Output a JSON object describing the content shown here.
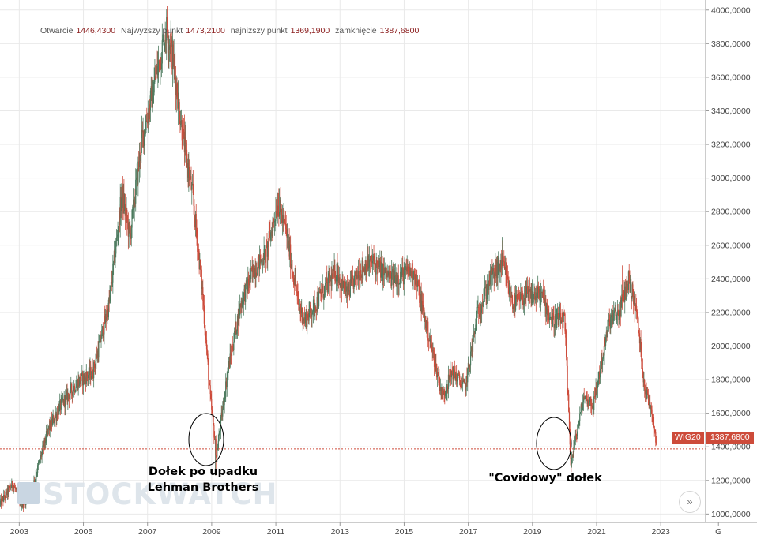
{
  "ohlc": {
    "open_label": "Otwarcie",
    "open": "1446,4300",
    "high_label": "Najwyzszy punkt",
    "high": "1473,2100",
    "low_label": "najnizszy punkt",
    "low": "1369,1900",
    "close_label": "zamknięcie",
    "close": "1387,6800"
  },
  "watermark": "STOCKWATCH",
  "annotations": {
    "lehman": [
      "Dołek po upadku",
      "Lehman Brothers"
    ],
    "covid": "\"Covidowy\" dołek"
  },
  "last_tag": {
    "symbol": "WIG20",
    "value": "1387,6800"
  },
  "colors": {
    "up": "#4c7a5e",
    "down": "#cd4b3a",
    "grid": "#e9e9e9",
    "axis_text": "#444444"
  },
  "nav_icon": "double-chevron-right-icon",
  "chart_data": {
    "type": "candlestick",
    "series_name": "WIG20",
    "y_axis": {
      "position": "right",
      "min": 950,
      "max": 4060,
      "ticks": [
        {
          "v": 1000,
          "label": "1000,0000"
        },
        {
          "v": 1200,
          "label": "1200,0000"
        },
        {
          "v": 1400,
          "label": "1400,0000"
        },
        {
          "v": 1600,
          "label": "1600,0000"
        },
        {
          "v": 1800,
          "label": "1800,0000"
        },
        {
          "v": 2000,
          "label": "2000,0000"
        },
        {
          "v": 2200,
          "label": "2200,0000"
        },
        {
          "v": 2400,
          "label": "2400,0000"
        },
        {
          "v": 2600,
          "label": "2600,0000"
        },
        {
          "v": 2800,
          "label": "2800,0000"
        },
        {
          "v": 3000,
          "label": "3000,0000"
        },
        {
          "v": 3200,
          "label": "3200,0000"
        },
        {
          "v": 3400,
          "label": "3400,0000"
        },
        {
          "v": 3600,
          "label": "3600,0000"
        },
        {
          "v": 3800,
          "label": "3800,0000"
        },
        {
          "v": 4000,
          "label": "4000,0000"
        }
      ]
    },
    "x_axis": {
      "min": 2002.4,
      "max": 2024.4,
      "ticks": [
        {
          "v": 2003,
          "label": "2003"
        },
        {
          "v": 2005,
          "label": "2005"
        },
        {
          "v": 2007,
          "label": "2007"
        },
        {
          "v": 2009,
          "label": "2009"
        },
        {
          "v": 2011,
          "label": "2011"
        },
        {
          "v": 2013,
          "label": "2013"
        },
        {
          "v": 2015,
          "label": "2015"
        },
        {
          "v": 2017,
          "label": "2017"
        },
        {
          "v": 2019,
          "label": "2019"
        },
        {
          "v": 2021,
          "label": "2021"
        },
        {
          "v": 2023,
          "label": "2023"
        },
        {
          "v": 2024.8,
          "label": "G"
        }
      ]
    },
    "last_value": 1387.68,
    "trend": [
      [
        2002.4,
        1060
      ],
      [
        2002.8,
        1180
      ],
      [
        2003.1,
        1050
      ],
      [
        2003.4,
        1150
      ],
      [
        2003.9,
        1500
      ],
      [
        2004.3,
        1650
      ],
      [
        2004.8,
        1780
      ],
      [
        2005.3,
        1850
      ],
      [
        2005.8,
        2250
      ],
      [
        2006.2,
        2900
      ],
      [
        2006.45,
        2650
      ],
      [
        2006.8,
        3200
      ],
      [
        2007.2,
        3550
      ],
      [
        2007.6,
        3900
      ],
      [
        2007.8,
        3700
      ],
      [
        2008.1,
        3250
      ],
      [
        2008.4,
        2900
      ],
      [
        2008.7,
        2350
      ],
      [
        2008.95,
        1700
      ],
      [
        2009.15,
        1350
      ],
      [
        2009.5,
        1850
      ],
      [
        2009.9,
        2250
      ],
      [
        2010.3,
        2450
      ],
      [
        2010.7,
        2550
      ],
      [
        2011.05,
        2850
      ],
      [
        2011.3,
        2700
      ],
      [
        2011.7,
        2250
      ],
      [
        2011.9,
        2150
      ],
      [
        2012.4,
        2300
      ],
      [
        2012.9,
        2450
      ],
      [
        2013.2,
        2300
      ],
      [
        2013.6,
        2450
      ],
      [
        2014.0,
        2500
      ],
      [
        2014.6,
        2400
      ],
      [
        2015.3,
        2450
      ],
      [
        2015.6,
        2200
      ],
      [
        2015.9,
        1950
      ],
      [
        2016.2,
        1700
      ],
      [
        2016.5,
        1850
      ],
      [
        2016.9,
        1750
      ],
      [
        2017.3,
        2200
      ],
      [
        2017.7,
        2400
      ],
      [
        2018.05,
        2500
      ],
      [
        2018.4,
        2250
      ],
      [
        2018.8,
        2300
      ],
      [
        2019.3,
        2300
      ],
      [
        2019.6,
        2150
      ],
      [
        2020.0,
        2150
      ],
      [
        2020.2,
        1300
      ],
      [
        2020.6,
        1700
      ],
      [
        2020.9,
        1650
      ],
      [
        2021.4,
        2150
      ],
      [
        2021.7,
        2200
      ],
      [
        2022.0,
        2400
      ],
      [
        2022.25,
        2200
      ],
      [
        2022.5,
        1750
      ],
      [
        2022.75,
        1600
      ],
      [
        2022.88,
        1387.68
      ]
    ],
    "extremes": [
      {
        "x": 2007.72,
        "high": 3940
      },
      {
        "x": 2009.12,
        "low": 1230
      },
      {
        "x": 2011.1,
        "high": 2940
      },
      {
        "x": 2018.05,
        "high": 2650
      },
      {
        "x": 2020.2,
        "low": 1250
      },
      {
        "x": 2021.8,
        "high": 2480
      }
    ]
  }
}
